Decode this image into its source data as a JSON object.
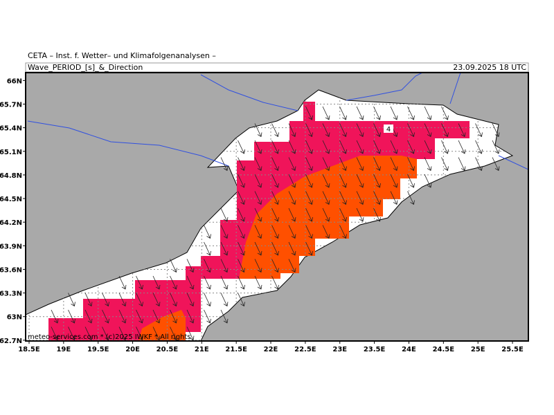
{
  "header": {
    "title": "CETA – Inst. f. Wetter– und Klimafolgenanalysen –",
    "variable": "Wave_PERIOD_[s]_&_Direction",
    "valid": "23.09.2025 18 UTC"
  },
  "map": {
    "xlim": [
      18.45,
      25.73
    ],
    "ylim": [
      62.69,
      66.1
    ],
    "lon_ticks": [
      {
        "value": 18.5,
        "label": "18.5E"
      },
      {
        "value": 19,
        "label": "19E"
      },
      {
        "value": 19.5,
        "label": "19.5E"
      },
      {
        "value": 20,
        "label": "20E"
      },
      {
        "value": 20.5,
        "label": "20.5E"
      },
      {
        "value": 21,
        "label": "21E"
      },
      {
        "value": 21.5,
        "label": "21.5E"
      },
      {
        "value": 22,
        "label": "22E"
      },
      {
        "value": 22.5,
        "label": "22.5E"
      },
      {
        "value": 23,
        "label": "23E"
      },
      {
        "value": 23.5,
        "label": "23.5E"
      },
      {
        "value": 24,
        "label": "24E"
      },
      {
        "value": 24.5,
        "label": "24.5E"
      },
      {
        "value": 25,
        "label": "25E"
      },
      {
        "value": 25.5,
        "label": "25.5E"
      }
    ],
    "lat_ticks": [
      {
        "value": 66,
        "label": "66N"
      },
      {
        "value": 65.7,
        "label": "65.7N"
      },
      {
        "value": 65.4,
        "label": "65.4N"
      },
      {
        "value": 65.1,
        "label": "65.1N"
      },
      {
        "value": 64.8,
        "label": "64.8N"
      },
      {
        "value": 64.5,
        "label": "64.5N"
      },
      {
        "value": 64.2,
        "label": "64.2N"
      },
      {
        "value": 63.9,
        "label": "63.9N"
      },
      {
        "value": 63.6,
        "label": "63.6N"
      },
      {
        "value": 63.3,
        "label": "63.3N"
      },
      {
        "value": 63,
        "label": "63N"
      },
      {
        "value": 62.7,
        "label": "62.7N"
      }
    ],
    "contour_label": "4",
    "credit": "meteo-services.com * (c)2025 IWKF * All rights"
  }
}
